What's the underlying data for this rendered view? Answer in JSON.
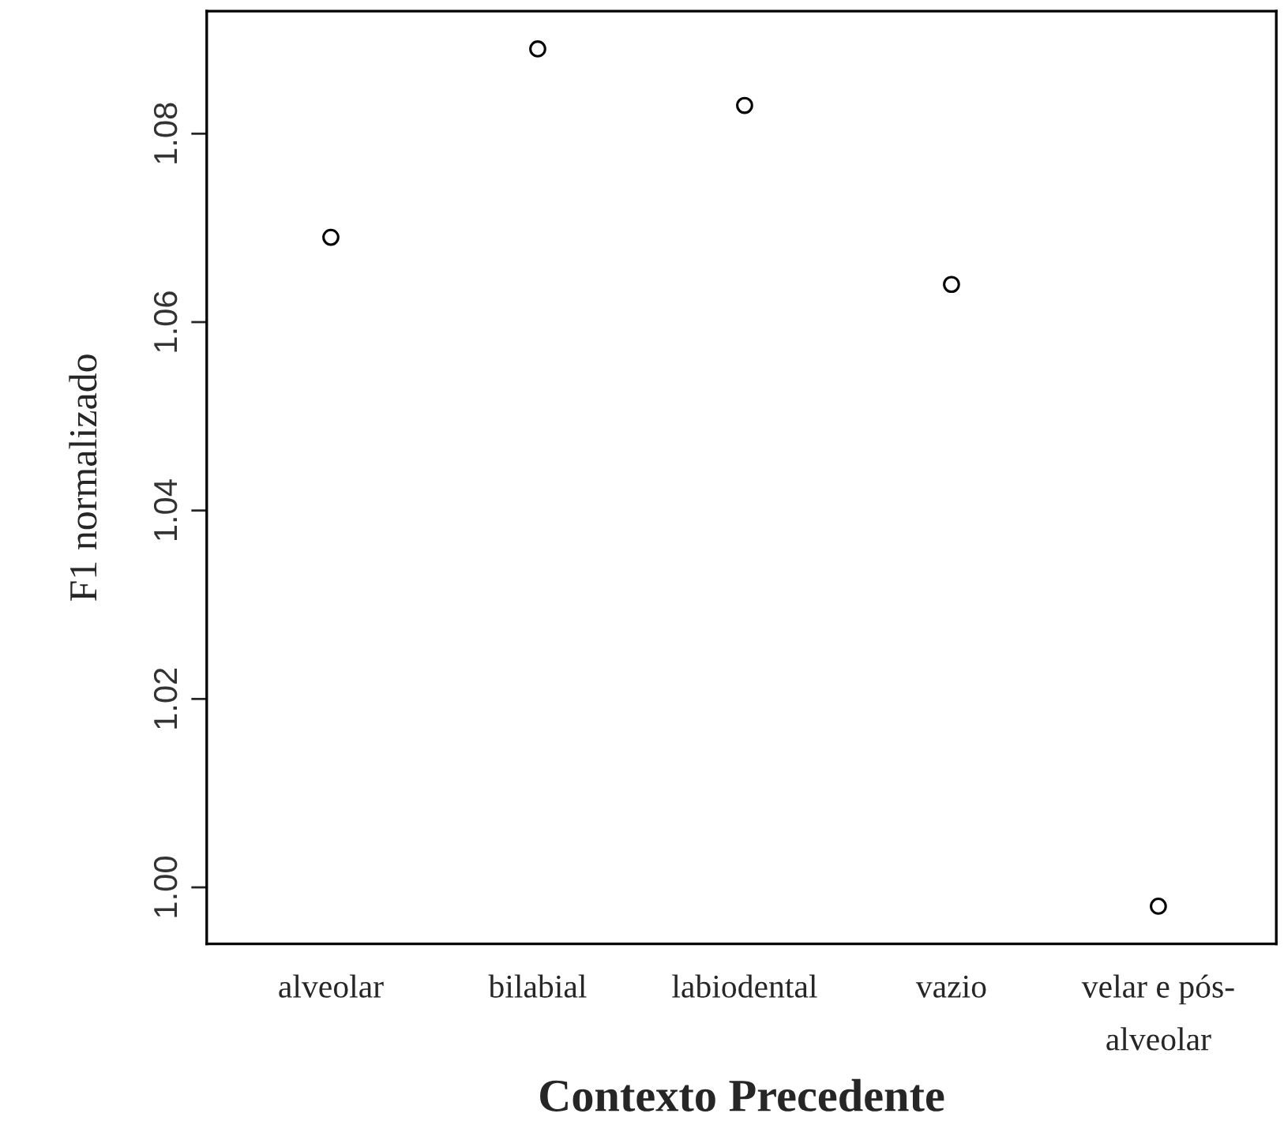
{
  "chart_data": {
    "type": "scatter",
    "xlabel": "Contexto Precedente",
    "ylabel": "F1 normalizado",
    "categories": [
      "alveolar",
      "bilabial",
      "labiodental",
      "vazio",
      "velar e pós-\nalveolar"
    ],
    "series": [
      {
        "color": "#000000",
        "values": [
          1.069,
          1.089,
          1.083,
          1.064,
          0.998
        ]
      }
    ],
    "marker": "circle",
    "ylim": [
      0.994,
      1.093
    ],
    "yticks": [
      {
        "value": 1.0,
        "label": "1.00"
      },
      {
        "value": 1.02,
        "label": "1.02"
      },
      {
        "value": 1.04,
        "label": "1.04"
      },
      {
        "value": 1.06,
        "label": "1.06"
      },
      {
        "value": 1.08,
        "label": "1.08"
      }
    ],
    "grid": false,
    "legend": false
  }
}
